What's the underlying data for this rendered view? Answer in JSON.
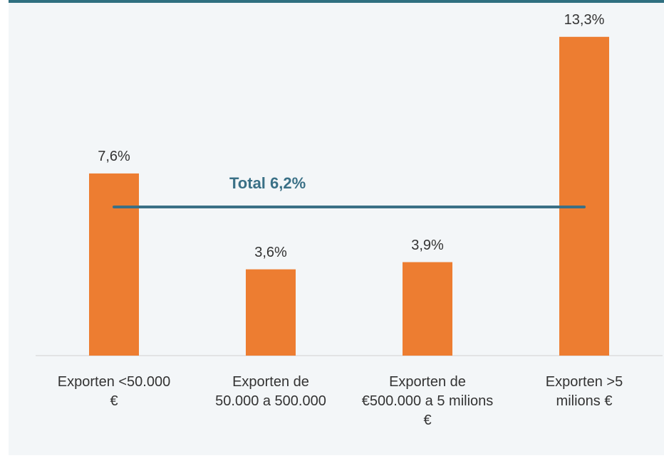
{
  "chart_data": {
    "type": "bar",
    "categories": [
      "Exporten <50.000\n€",
      "Exporten de\n50.000 a 500.000",
      "Exporten de\n€500.000 a 5 milions\n€",
      "Exporten >5\nmilions €"
    ],
    "values": [
      7.6,
      3.6,
      3.9,
      13.3
    ],
    "value_labels": [
      "7,6%",
      "3,6%",
      "3,9%",
      "13,3%"
    ],
    "color": "#ed7d31",
    "reference_line": {
      "value": 6.2,
      "label": "Total 6,2%",
      "color": "#3a7086"
    }
  }
}
